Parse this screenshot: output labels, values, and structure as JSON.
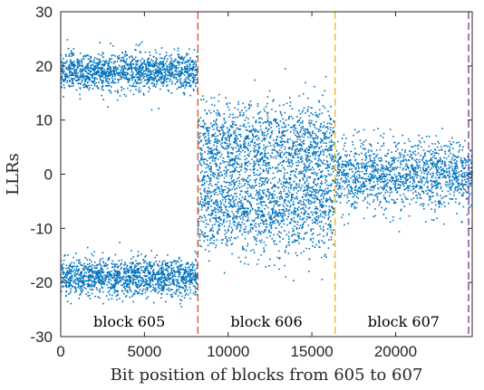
{
  "chart_data": {
    "type": "scatter",
    "title": "",
    "xlabel": "Bit position of blocks from 605 to 607",
    "ylabel": "LLRs",
    "xlim": [
      0,
      24576
    ],
    "ylim": [
      -30,
      30
    ],
    "xticks": [
      0,
      5000,
      10000,
      15000,
      20000
    ],
    "xtick_labels": [
      "0",
      "5000",
      "10000",
      "15000",
      "20000"
    ],
    "yticks": [
      -30,
      -20,
      -10,
      0,
      10,
      20,
      30
    ],
    "ytick_labels": [
      "-30",
      "-20",
      "-10",
      "0",
      "10",
      "20",
      "30"
    ],
    "grid": false,
    "legend": "none",
    "marker_color": "#0072bd",
    "blocks": [
      {
        "label": "block 605",
        "x_range": [
          0,
          8192
        ],
        "clusters": [
          {
            "center": 19,
            "spread": 1.7
          },
          {
            "center": -19,
            "spread": 1.7
          }
        ]
      },
      {
        "label": "block 606",
        "x_range": [
          8192,
          16384
        ],
        "clusters": [
          {
            "center": 5,
            "spread": 4
          },
          {
            "center": -6.5,
            "spread": 4
          }
        ]
      },
      {
        "label": "block 607",
        "x_range": [
          16384,
          24576
        ],
        "clusters": [
          {
            "center": 0,
            "spread": 3
          }
        ]
      }
    ],
    "boundaries": [
      {
        "x": 8192,
        "color": "#d95319"
      },
      {
        "x": 16384,
        "color": "#edb120"
      },
      {
        "x": 24576,
        "color": "#7e2f8e"
      }
    ]
  }
}
